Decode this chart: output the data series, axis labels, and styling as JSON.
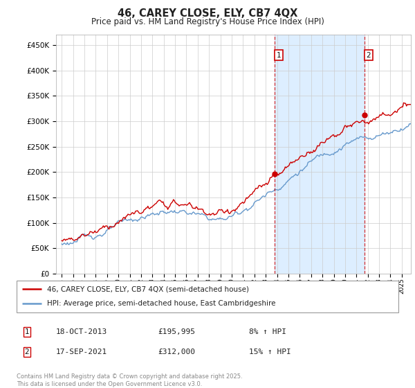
{
  "title": "46, CAREY CLOSE, ELY, CB7 4QX",
  "subtitle": "Price paid vs. HM Land Registry's House Price Index (HPI)",
  "ytick_values": [
    0,
    50000,
    100000,
    150000,
    200000,
    250000,
    300000,
    350000,
    400000,
    450000
  ],
  "ylim": [
    0,
    470000
  ],
  "xlim_start": 1994.5,
  "xlim_end": 2025.8,
  "red_color": "#cc0000",
  "blue_color": "#6699cc",
  "blue_fill_color": "#ddeeff",
  "vline_color": "#cc0000",
  "marker1_x": 2013.79,
  "marker1_y": 195995,
  "marker2_x": 2021.71,
  "marker2_y": 312000,
  "legend_red_label": "46, CAREY CLOSE, ELY, CB7 4QX (semi-detached house)",
  "legend_blue_label": "HPI: Average price, semi-detached house, East Cambridgeshire",
  "table_row1": [
    "1",
    "18-OCT-2013",
    "£195,995",
    "8% ↑ HPI"
  ],
  "table_row2": [
    "2",
    "17-SEP-2021",
    "£312,000",
    "15% ↑ HPI"
  ],
  "footnote": "Contains HM Land Registry data © Crown copyright and database right 2025.\nThis data is licensed under the Open Government Licence v3.0.",
  "background_color": "#ffffff",
  "grid_color": "#cccccc"
}
